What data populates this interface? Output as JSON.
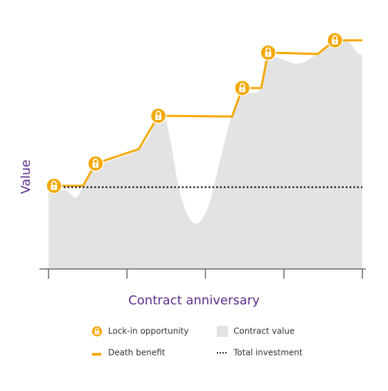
{
  "chart_data": {
    "type": "line",
    "y_label": "Value",
    "x_label": "Contract anniversary",
    "xlim": [
      0,
      4
    ],
    "xticks": [
      0,
      1,
      2,
      3,
      4
    ],
    "ylim": [
      0,
      100
    ],
    "series": [
      {
        "name": "Contract value",
        "style": "area",
        "color": "#e3e3e3",
        "x": [
          0,
          0.22,
          0.35,
          0.44,
          0.62,
          1.15,
          1.37,
          1.46,
          1.55,
          1.68,
          1.85,
          2.03,
          2.21,
          2.34,
          2.47,
          2.69,
          2.78,
          2.96,
          3.18,
          3.4,
          3.62,
          3.8,
          3.93,
          4
        ],
        "values": [
          33.9,
          32.5,
          29.6,
          33.9,
          42.5,
          49.7,
          61.2,
          65.5,
          54.0,
          31.0,
          19.0,
          25.3,
          48.3,
          64.1,
          72.7,
          74.1,
          88.5,
          87.1,
          85.1,
          88.5,
          94.3,
          94.8,
          89.9,
          88.5
        ]
      },
      {
        "name": "Death benefit",
        "style": "line",
        "color": "#f5a800",
        "x": [
          0.07,
          0.44,
          0.6,
          1.15,
          1.4,
          2.34,
          2.47,
          2.71,
          2.8,
          3.43,
          3.65,
          4
        ],
        "values": [
          34.5,
          34.5,
          43.7,
          49.7,
          63.5,
          63.2,
          75.0,
          75.0,
          89.7,
          89.1,
          94.8,
          94.8
        ]
      },
      {
        "name": "Total investment",
        "style": "dotted",
        "color": "#222222",
        "x": [
          0,
          4
        ],
        "values": [
          33.9,
          33.9
        ]
      },
      {
        "name": "Lock-in opportunity",
        "style": "marker",
        "color": "#f5a800",
        "x": [
          0.07,
          0.6,
          1.4,
          2.47,
          2.8,
          3.65
        ],
        "values": [
          34.5,
          43.7,
          63.5,
          75.0,
          89.7,
          94.8
        ]
      }
    ]
  }
}
